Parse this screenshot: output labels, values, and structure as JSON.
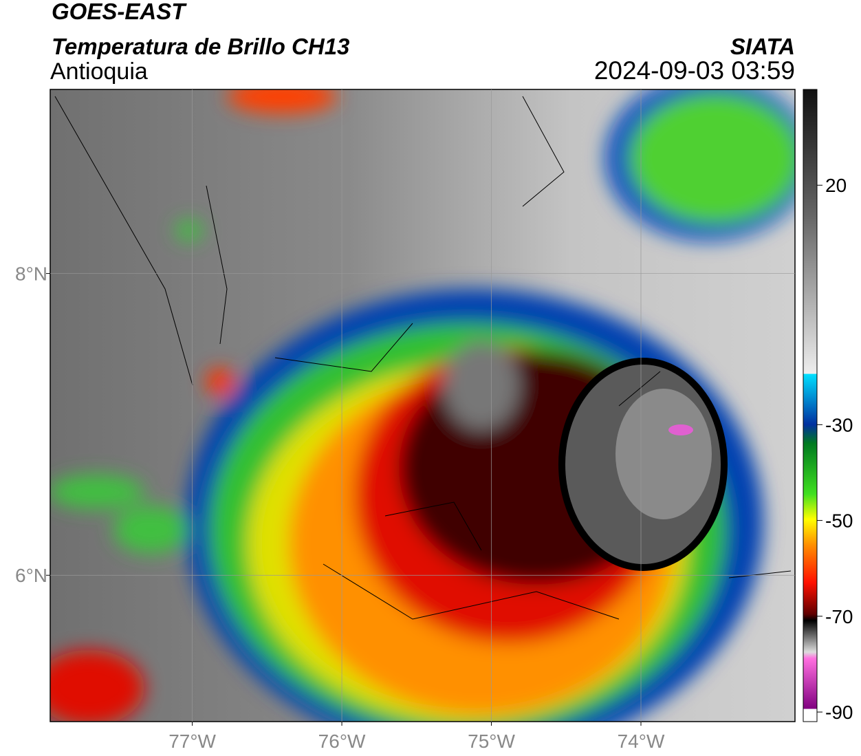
{
  "header": {
    "title": "GOES-EAST",
    "subtitle": "Temperatura de Brillo CH13",
    "region": "Antioquia",
    "source": "SIATA",
    "datetime": "2024-09-03 03:59"
  },
  "map": {
    "xlim": [
      -77.95,
      -72.97
    ],
    "ylim": [
      5.03,
      9.22
    ],
    "xticks": [
      {
        "value": -77,
        "label": "77°W"
      },
      {
        "value": -76,
        "label": "76°W"
      },
      {
        "value": -75,
        "label": "75°W"
      },
      {
        "value": -74,
        "label": "74°W"
      }
    ],
    "yticks": [
      {
        "value": 8,
        "label": "8°N"
      },
      {
        "value": 6,
        "label": "6°N"
      }
    ],
    "grid": true
  },
  "colorbar": {
    "lim": [
      -92,
      40
    ],
    "ticks": [
      20,
      -30,
      -50,
      -70,
      -90
    ]
  }
}
